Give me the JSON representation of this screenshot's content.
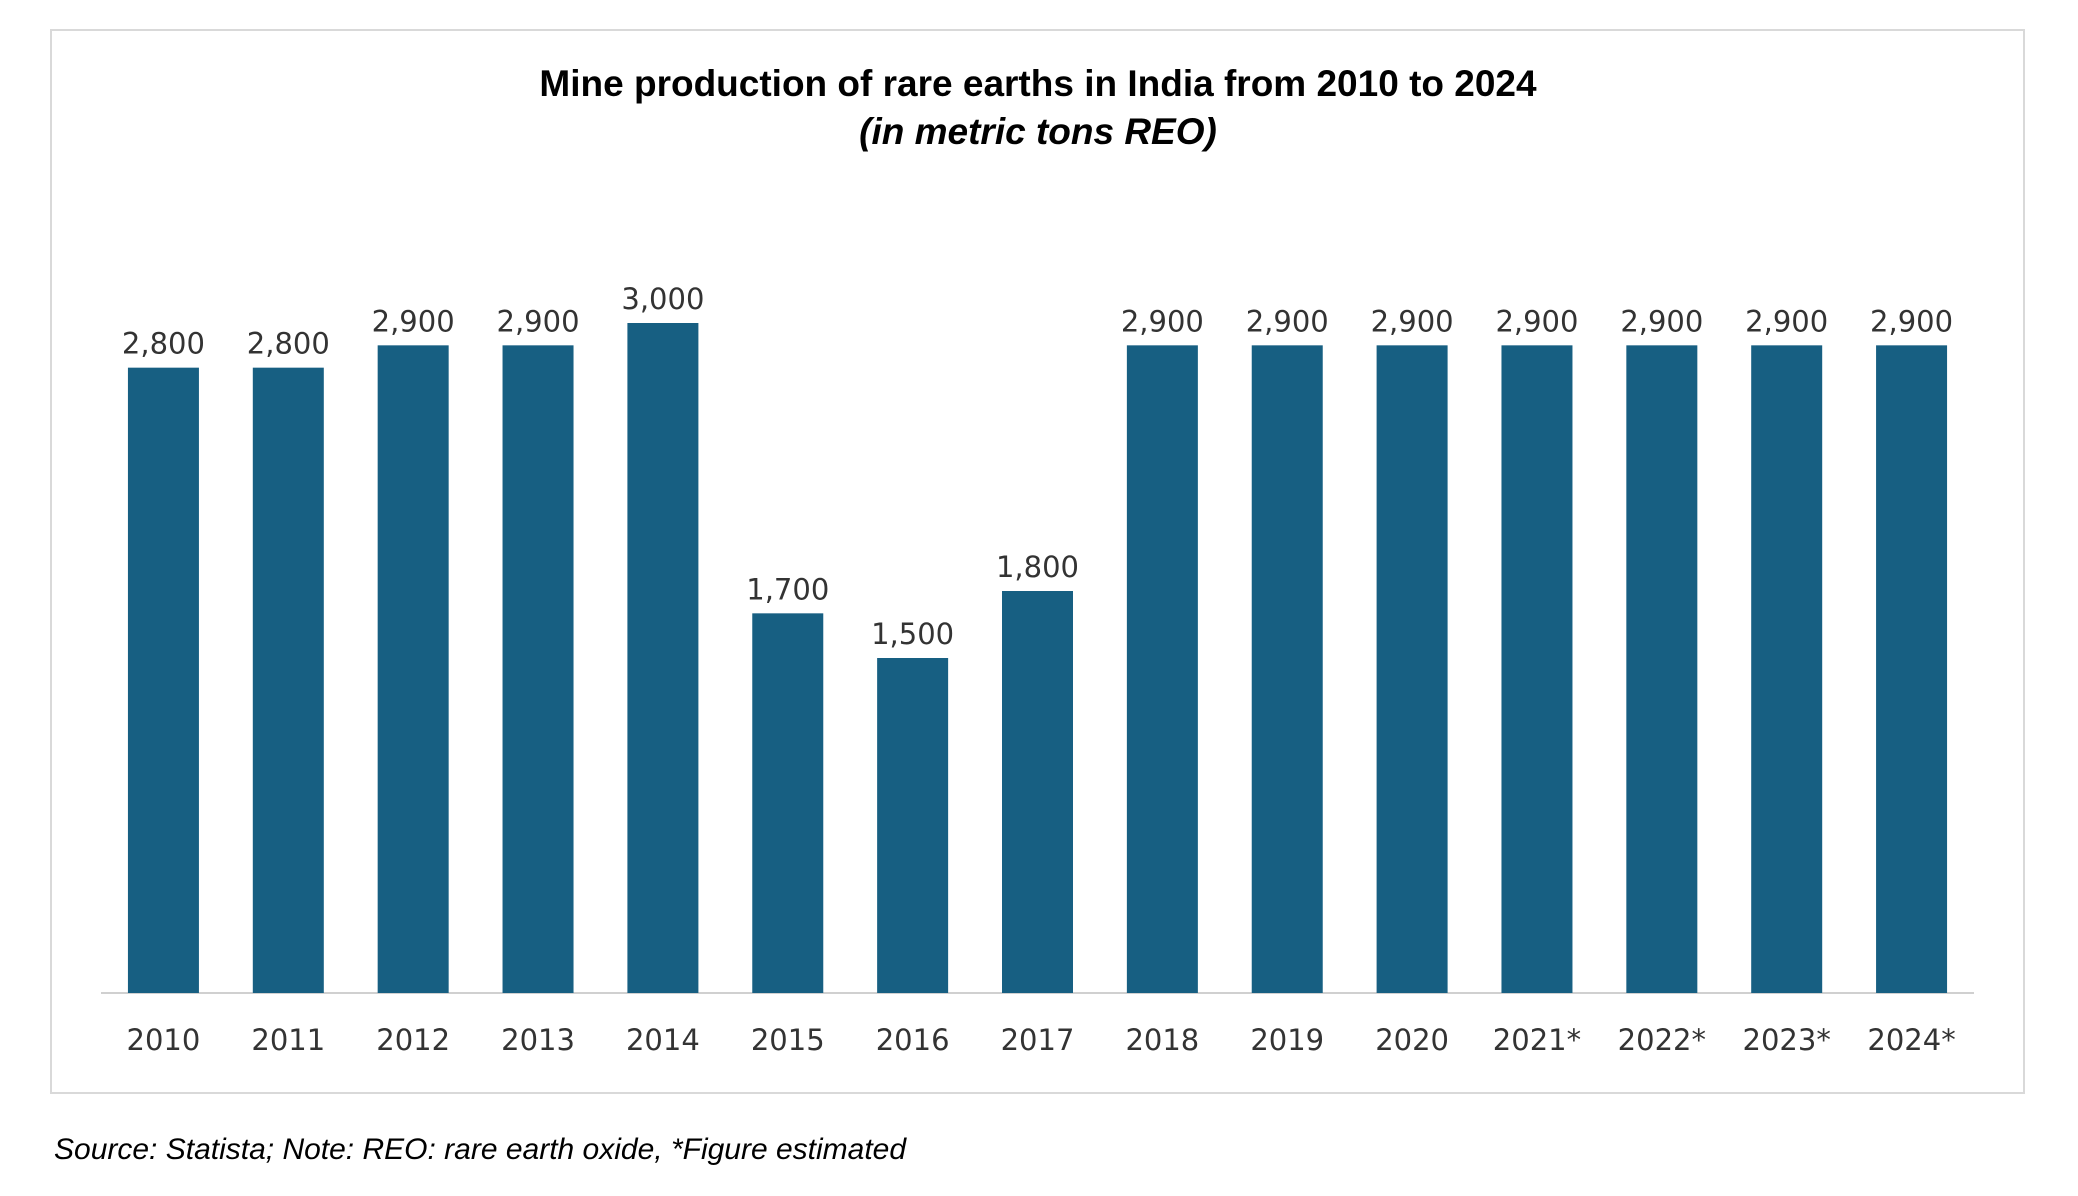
{
  "chart_data": {
    "type": "bar",
    "title": "Mine production of rare earths in India from 2010 to 2024",
    "subtitle": "(in metric tons REO)",
    "categories": [
      "2010",
      "2011",
      "2012",
      "2013",
      "2014",
      "2015",
      "2016",
      "2017",
      "2018",
      "2019",
      "2020",
      "2021*",
      "2022*",
      "2023*",
      "2024*"
    ],
    "values": [
      2800,
      2800,
      2900,
      2900,
      3000,
      1700,
      1500,
      1800,
      2900,
      2900,
      2900,
      2900,
      2900,
      2900,
      2900
    ],
    "value_labels": [
      "2,800",
      "2,800",
      "2,900",
      "2,900",
      "3,000",
      "1,700",
      "1,500",
      "1,800",
      "2,900",
      "2,900",
      "2,900",
      "2,900",
      "2,900",
      "2,900",
      "2,900"
    ],
    "color": "#175f82",
    "ylim": [
      0,
      3000
    ],
    "source": "Source: Statista; Note: REO: rare earth oxide, *Figure estimated"
  }
}
